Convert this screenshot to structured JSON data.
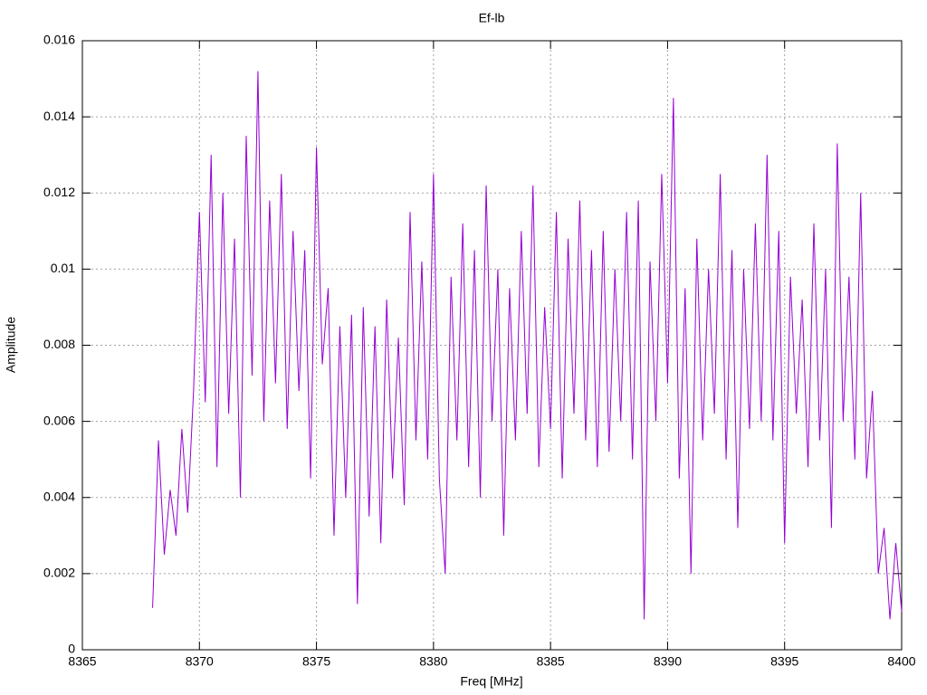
{
  "chart_data": {
    "type": "line",
    "title": "Ef-lb",
    "x_label": "Freq [MHz]",
    "y_label": "Amplitude",
    "xlim": [
      8365,
      8400
    ],
    "xticks": [
      8365,
      8370,
      8375,
      8380,
      8385,
      8390,
      8395,
      8400
    ],
    "ylim": [
      0,
      0.016
    ],
    "yticks": [
      0,
      0.002,
      0.004,
      0.006,
      0.008,
      0.01,
      0.012,
      0.014,
      0.016
    ],
    "grid": true,
    "x": [
      8368,
      8368.25,
      8368.5,
      8368.75,
      8369,
      8369.25,
      8369.5,
      8369.75,
      8370,
      8370.25,
      8370.5,
      8370.75,
      8371,
      8371.25,
      8371.5,
      8371.75,
      8372,
      8372.25,
      8372.5,
      8372.75,
      8373,
      8373.25,
      8373.5,
      8373.75,
      8374,
      8374.25,
      8374.5,
      8374.75,
      8375,
      8375.25,
      8375.5,
      8375.75,
      8376,
      8376.25,
      8376.5,
      8376.75,
      8377,
      8377.25,
      8377.5,
      8377.75,
      8378,
      8378.25,
      8378.5,
      8378.75,
      8379,
      8379.25,
      8379.5,
      8379.75,
      8380,
      8380.25,
      8380.5,
      8380.75,
      8381,
      8381.25,
      8381.5,
      8381.75,
      8382,
      8382.25,
      8382.5,
      8382.75,
      8383,
      8383.25,
      8383.5,
      8383.75,
      8384,
      8384.25,
      8384.5,
      8384.75,
      8385,
      8385.25,
      8385.5,
      8385.75,
      8386,
      8386.25,
      8386.5,
      8386.75,
      8387,
      8387.25,
      8387.5,
      8387.75,
      8388,
      8388.25,
      8388.5,
      8388.75,
      8389,
      8389.25,
      8389.5,
      8389.75,
      8390,
      8390.25,
      8390.5,
      8390.75,
      8391,
      8391.25,
      8391.5,
      8391.75,
      8392,
      8392.25,
      8392.5,
      8392.75,
      8393,
      8393.25,
      8393.5,
      8393.75,
      8394,
      8394.25,
      8394.5,
      8394.75,
      8395,
      8395.25,
      8395.5,
      8395.75,
      8396,
      8396.25,
      8396.5,
      8396.75,
      8397,
      8397.25,
      8397.5,
      8397.75,
      8398,
      8398.25,
      8398.5,
      8398.75,
      8399,
      8399.25,
      8399.5,
      8399.75,
      8400
    ],
    "series": [
      {
        "name": "Ef-lb",
        "color": "#9400d3",
        "values": [
          0.0011,
          0.0055,
          0.0025,
          0.0042,
          0.003,
          0.0058,
          0.0036,
          0.0068,
          0.0115,
          0.0065,
          0.013,
          0.0048,
          0.012,
          0.0062,
          0.0108,
          0.004,
          0.0135,
          0.0072,
          0.0152,
          0.006,
          0.0118,
          0.007,
          0.0125,
          0.0058,
          0.011,
          0.0068,
          0.0105,
          0.0045,
          0.0132,
          0.0075,
          0.0095,
          0.003,
          0.0085,
          0.004,
          0.0088,
          0.0012,
          0.009,
          0.0035,
          0.0085,
          0.0028,
          0.0092,
          0.0045,
          0.0082,
          0.0038,
          0.0115,
          0.0055,
          0.0102,
          0.005,
          0.0125,
          0.0045,
          0.002,
          0.0098,
          0.0055,
          0.0112,
          0.0048,
          0.0105,
          0.004,
          0.0122,
          0.006,
          0.01,
          0.003,
          0.0095,
          0.0055,
          0.011,
          0.0062,
          0.0122,
          0.0048,
          0.009,
          0.0058,
          0.0115,
          0.0045,
          0.0108,
          0.0062,
          0.0118,
          0.0055,
          0.0105,
          0.0048,
          0.011,
          0.0052,
          0.01,
          0.006,
          0.0115,
          0.005,
          0.0118,
          0.0008,
          0.0102,
          0.006,
          0.0125,
          0.007,
          0.0145,
          0.0045,
          0.0095,
          0.002,
          0.0108,
          0.0055,
          0.01,
          0.0062,
          0.0125,
          0.005,
          0.0105,
          0.0032,
          0.01,
          0.0058,
          0.0112,
          0.006,
          0.013,
          0.0055,
          0.011,
          0.0028,
          0.0098,
          0.0062,
          0.0092,
          0.0048,
          0.0112,
          0.0055,
          0.01,
          0.0032,
          0.0133,
          0.006,
          0.0098,
          0.005,
          0.012,
          0.0045,
          0.0068,
          0.002,
          0.0032,
          0.0008,
          0.0028,
          0.001
        ]
      }
    ]
  }
}
